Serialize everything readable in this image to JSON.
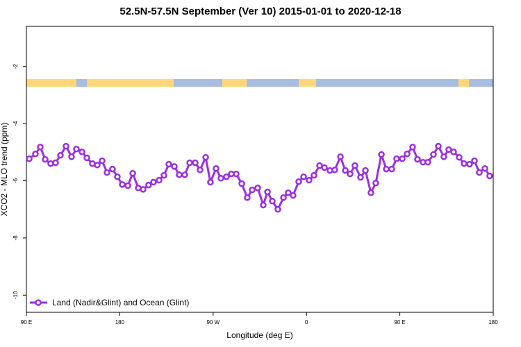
{
  "chart_data": {
    "type": "line",
    "title": "52.5N-57.5N September (Ver 10)   2015-01-01 to 2020-12-18",
    "x_label": "Longitude (deg E)",
    "y_label": "XCO2 - MLO trend (ppm)",
    "xlim": [
      90,
      540
    ],
    "ylim": [
      -10.6,
      -0.6
    ],
    "xticks": [
      {
        "value": 90,
        "label": "90 E"
      },
      180,
      {
        "value": 270,
        "label": "90 W"
      },
      {
        "value": 360,
        "label": "0"
      },
      {
        "value": 450,
        "label": "90 E"
      },
      {
        "value": 540,
        "label": "180"
      }
    ],
    "yticks": [
      -2,
      -4,
      -6,
      -8,
      -10
    ],
    "legend": "bottom-left",
    "x": [
      92.7,
      98.7,
      103.4,
      108.1,
      113.4,
      118.1,
      122.8,
      128.2,
      133.5,
      138.2,
      143.6,
      148.3,
      153.6,
      158.3,
      163.0,
      167.7,
      173.0,
      177.7,
      182.4,
      187.8,
      192.5,
      197.8,
      202.5,
      207.8,
      212.5,
      217.9,
      222.6,
      227.3,
      232.6,
      237.3,
      242.7,
      247.4,
      252.7,
      257.4,
      262.8,
      267.4,
      272.8,
      277.5,
      282.8,
      287.5,
      292.2,
      297.6,
      302.9,
      307.6,
      313.0,
      318.3,
      322.4,
      327.0,
      332.4,
      337.8,
      342.4,
      347.1,
      352.5,
      357.2,
      362.5,
      367.2,
      372.6,
      377.3,
      382.6,
      387.3,
      392.7,
      397.4,
      402.0,
      406.7,
      412.1,
      416.8,
      422.1,
      426.8,
      432.2,
      436.9,
      442.2,
      446.9,
      452.3,
      457.0,
      462.3,
      467.0,
      472.3,
      477.0,
      482.4,
      487.1,
      492.4,
      497.1,
      501.8,
      507.2,
      511.9,
      517.2,
      521.9,
      526.6,
      532.0,
      536.6
    ],
    "series": [
      {
        "name": "Land (Nadir&Glint) and Ocean (Glint)",
        "color": "#9b2fe0",
        "values": [
          -5.23,
          -5.06,
          -4.82,
          -5.25,
          -5.4,
          -5.37,
          -5.11,
          -4.79,
          -5.16,
          -4.89,
          -4.99,
          -5.2,
          -5.4,
          -5.45,
          -5.3,
          -5.71,
          -5.59,
          -5.86,
          -6.13,
          -6.17,
          -5.74,
          -6.25,
          -6.3,
          -6.15,
          -6.05,
          -5.98,
          -5.81,
          -5.42,
          -5.5,
          -5.79,
          -5.79,
          -5.37,
          -5.37,
          -5.62,
          -5.18,
          -6.05,
          -5.57,
          -5.91,
          -5.86,
          -5.76,
          -5.76,
          -6.1,
          -6.59,
          -6.32,
          -6.25,
          -6.85,
          -6.39,
          -6.71,
          -7.0,
          -6.59,
          -6.42,
          -6.51,
          -6.03,
          -5.86,
          -5.98,
          -5.81,
          -5.47,
          -5.54,
          -5.64,
          -5.62,
          -5.16,
          -5.64,
          -5.76,
          -5.47,
          -5.88,
          -5.64,
          -6.42,
          -6.08,
          -5.08,
          -5.59,
          -5.59,
          -5.23,
          -5.23,
          -5.06,
          -4.82,
          -5.25,
          -5.35,
          -5.35,
          -5.08,
          -4.79,
          -5.16,
          -4.91,
          -4.99,
          -5.18,
          -5.4,
          -5.42,
          -5.3,
          -5.71,
          -5.57,
          -5.83
        ]
      }
    ]
  }
}
